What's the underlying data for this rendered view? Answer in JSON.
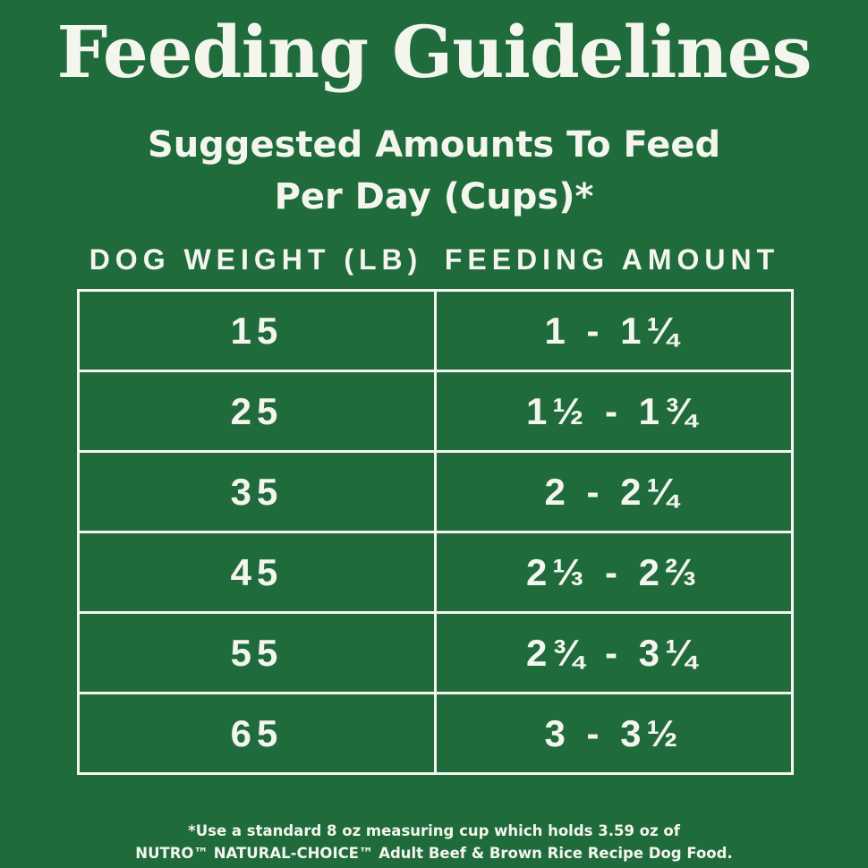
{
  "title": "Feeding Guidelines",
  "subtitle": {
    "line1": "Suggested Amounts To Feed",
    "line2": "Per Day (Cups)*"
  },
  "table": {
    "headers": {
      "weight": "DOG WEIGHT (LB)",
      "amount": "FEEDING AMOUNT"
    },
    "rows": [
      {
        "weight": "15",
        "amount": "1 - 1¼"
      },
      {
        "weight": "25",
        "amount": "1½ - 1¾"
      },
      {
        "weight": "35",
        "amount": "2 - 2¼"
      },
      {
        "weight": "45",
        "amount": "2⅓ - 2⅔"
      },
      {
        "weight": "55",
        "amount": "2¾ - 3¼"
      },
      {
        "weight": "65",
        "amount": "3 - 3½"
      }
    ]
  },
  "footnote": {
    "line1": "*Use a standard 8 oz measuring cup which holds 3.59 oz of",
    "line2": "NUTRO™ NATURAL-CHOICE™ Adult Beef & Brown Rice Recipe Dog Food."
  },
  "colors": {
    "background": "#1f6b3c",
    "foreground": "#f4f6ee"
  }
}
